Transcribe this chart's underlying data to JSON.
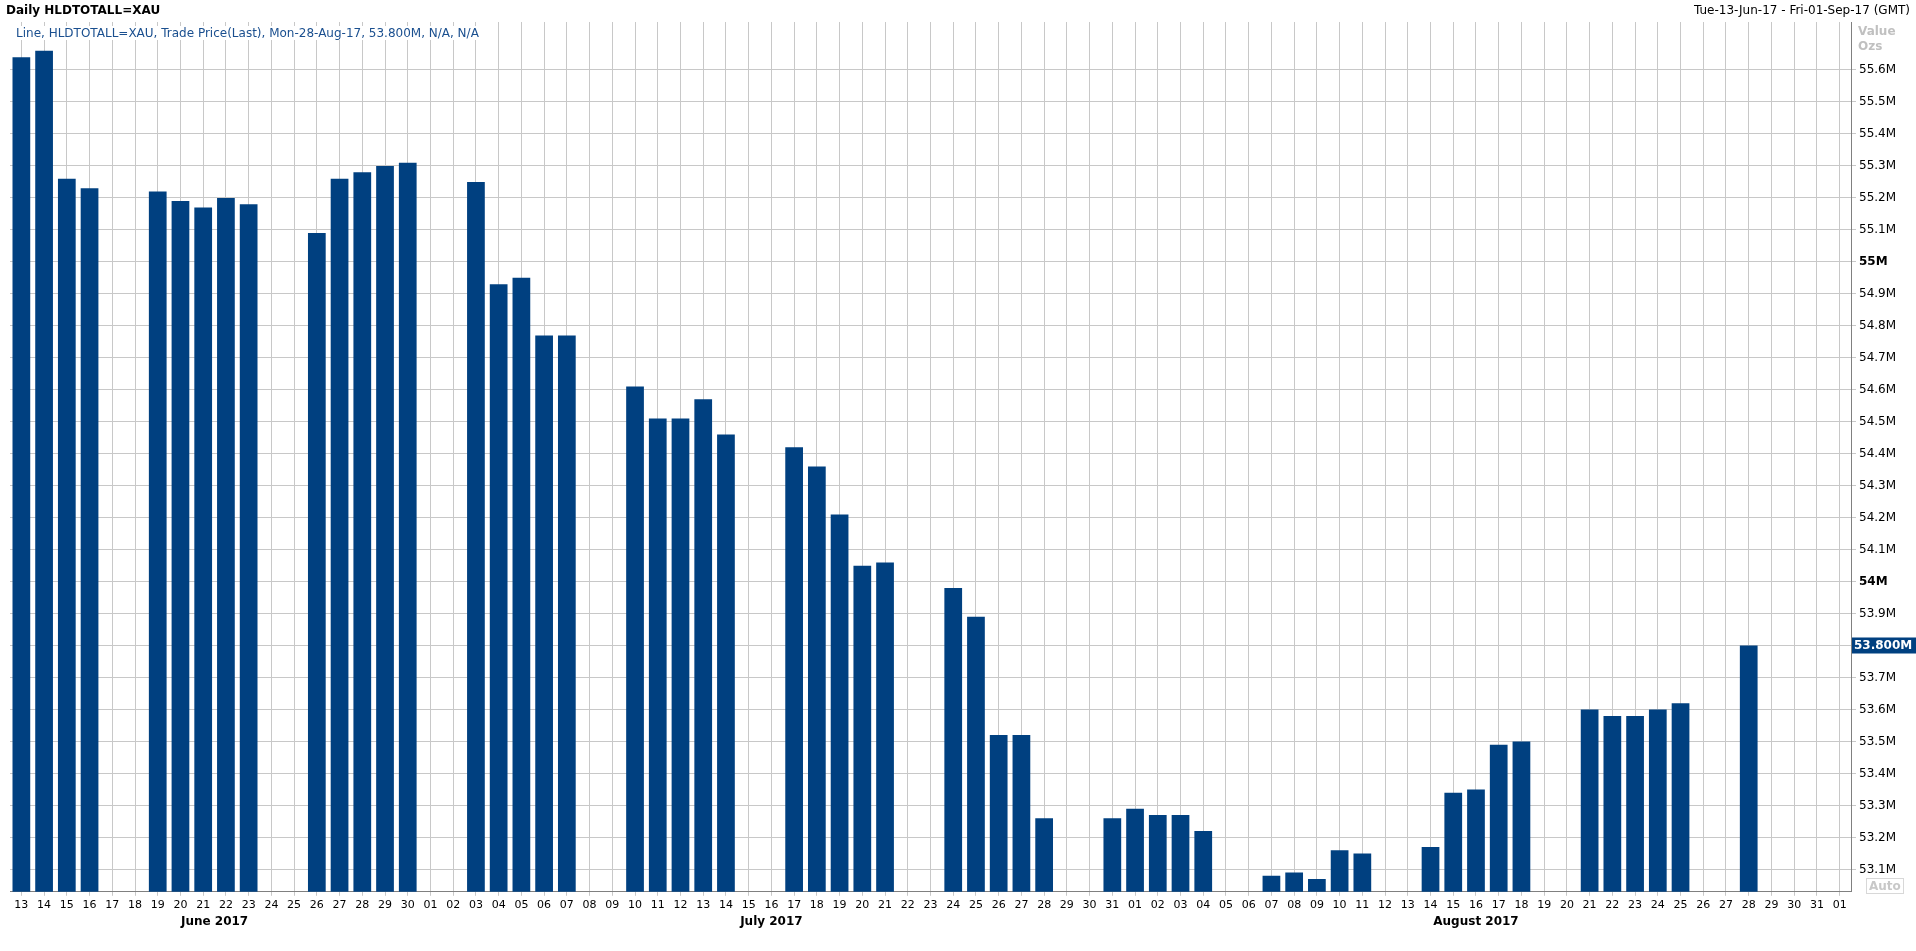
{
  "chart_data": {
    "type": "bar",
    "title": "Daily HLDTOTALL=XAU",
    "subtitle": "Line, HLDTOTALL=XAU, Trade Price(Last), Mon-28-Aug-17, 53.800M, N/A, N/A",
    "ylabel": "Value Ozs",
    "categories": [
      "13",
      "14",
      "15",
      "16",
      "17",
      "18",
      "19",
      "20",
      "21",
      "22",
      "23",
      "24",
      "25",
      "26",
      "27",
      "28",
      "29",
      "30",
      "01",
      "02",
      "03",
      "04",
      "05",
      "06",
      "07",
      "08",
      "09",
      "10",
      "11",
      "12",
      "13",
      "14",
      "15",
      "16",
      "17",
      "18",
      "19",
      "20",
      "21",
      "22",
      "23",
      "24",
      "25",
      "26",
      "27",
      "28",
      "29",
      "30",
      "31",
      "01",
      "02",
      "03",
      "04",
      "05",
      "06",
      "07",
      "08",
      "09",
      "10",
      "11",
      "12",
      "13",
      "14",
      "15",
      "16",
      "17",
      "18",
      "19",
      "20",
      "21",
      "22",
      "23",
      "24",
      "25",
      "26",
      "27",
      "28",
      "29",
      "30",
      "31",
      "01"
    ],
    "values": [
      55.64,
      55.66,
      55.26,
      55.23,
      null,
      null,
      55.22,
      55.19,
      55.17,
      55.2,
      55.18,
      null,
      null,
      55.09,
      55.26,
      55.28,
      55.3,
      55.31,
      null,
      null,
      55.25,
      54.93,
      54.95,
      54.77,
      54.77,
      null,
      null,
      54.61,
      54.51,
      54.51,
      54.57,
      54.46,
      null,
      null,
      54.42,
      54.36,
      54.21,
      54.05,
      54.06,
      null,
      null,
      53.98,
      53.89,
      53.52,
      53.52,
      53.26,
      null,
      null,
      53.26,
      53.29,
      53.27,
      53.27,
      53.22,
      null,
      null,
      53.08,
      53.09,
      53.07,
      53.16,
      53.15,
      null,
      null,
      53.17,
      53.34,
      53.35,
      53.49,
      53.5,
      null,
      null,
      53.6,
      53.58,
      53.58,
      53.6,
      53.62,
      null,
      null,
      53.8,
      null,
      null,
      null,
      null
    ],
    "color": "#004080",
    "ylim": [
      53.03,
      55.75
    ],
    "yticks": [
      {
        "value": 53.1,
        "label": "53.1M"
      },
      {
        "value": 53.2,
        "label": "53.2M"
      },
      {
        "value": 53.3,
        "label": "53.3M"
      },
      {
        "value": 53.4,
        "label": "53.4M"
      },
      {
        "value": 53.5,
        "label": "53.5M"
      },
      {
        "value": 53.6,
        "label": "53.6M"
      },
      {
        "value": 53.7,
        "label": "53.7M"
      },
      {
        "value": 53.8,
        "label": null
      },
      {
        "value": 53.9,
        "label": "53.9M"
      },
      {
        "value": 54,
        "label": "54M"
      },
      {
        "value": 54.1,
        "label": "54.1M"
      },
      {
        "value": 54.2,
        "label": "54.2M"
      },
      {
        "value": 54.3,
        "label": "54.3M"
      },
      {
        "value": 54.4,
        "label": "54.4M"
      },
      {
        "value": 54.5,
        "label": "54.5M"
      },
      {
        "value": 54.6,
        "label": "54.6M"
      },
      {
        "value": 54.7,
        "label": "54.7M"
      },
      {
        "value": 54.8,
        "label": "54.8M"
      },
      {
        "value": 54.9,
        "label": "54.9M"
      },
      {
        "value": 55,
        "label": "55M"
      },
      {
        "value": 55.1,
        "label": "55.1M"
      },
      {
        "value": 55.2,
        "label": "55.2M"
      },
      {
        "value": 55.3,
        "label": "55.3M"
      },
      {
        "value": 55.4,
        "label": "55.4M"
      },
      {
        "value": 55.5,
        "label": "55.5M"
      },
      {
        "value": 55.6,
        "label": "55.6M"
      }
    ],
    "grid": true,
    "legend": false,
    "annotations": [
      "Tue-13-Jun-17 - Fri-01-Sep-17 (GMT)",
      "Auto",
      "June 2017",
      "July 2017",
      "August 2017",
      "53.800M"
    ]
  }
}
